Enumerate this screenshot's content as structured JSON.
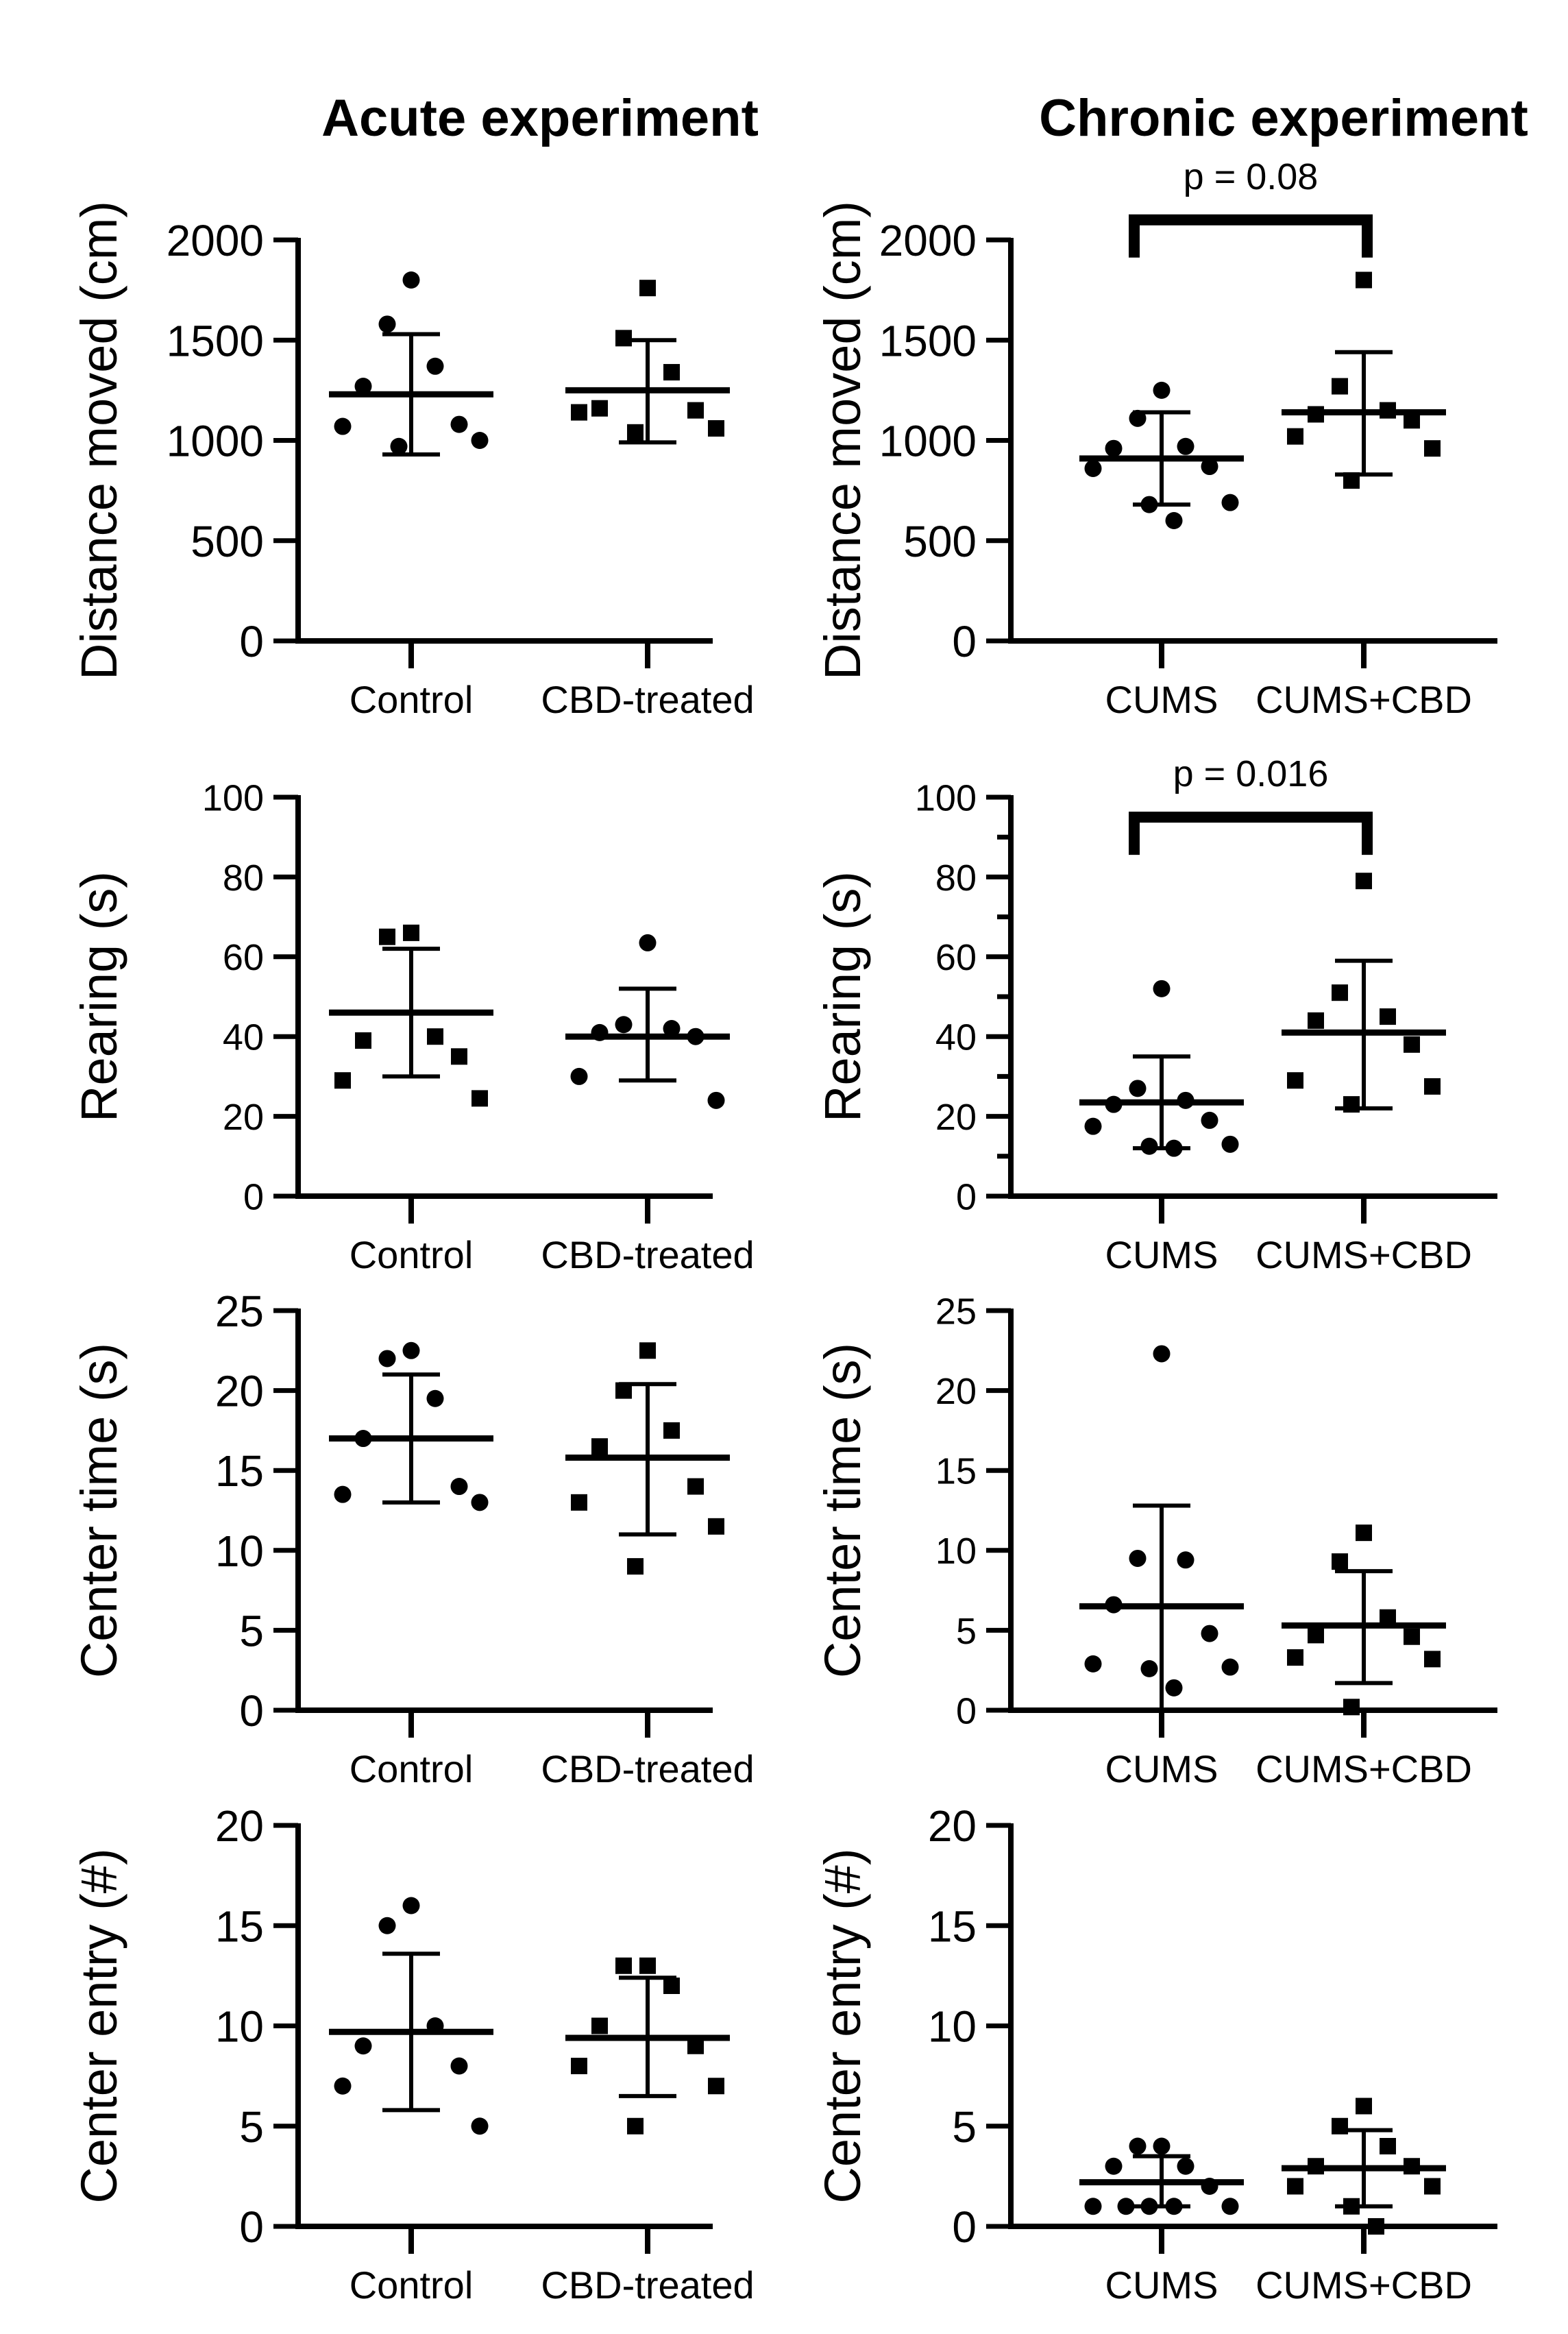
{
  "column_titles": {
    "acute": "Acute experiment",
    "chronic": "Chronic experiment"
  },
  "chart_data": [
    {
      "id": "acute-distance",
      "type": "scatter",
      "panel": "A1",
      "ylabel": "Distance moved (cm)",
      "ylim": [
        0,
        2000
      ],
      "yticks": [
        0,
        500,
        1000,
        1500,
        2000
      ],
      "ytick_size": "large",
      "minor": false,
      "categories": [
        "Control",
        "CBD-treated"
      ],
      "groups": [
        {
          "name": "Control",
          "marker": "circle",
          "mean": 1230,
          "sd_low": 930,
          "sd_high": 1530,
          "points": [
            1800,
            1580,
            1370,
            1270,
            1080,
            1070,
            1000,
            970
          ]
        },
        {
          "name": "CBD-treated",
          "marker": "square",
          "mean": 1250,
          "sd_low": 990,
          "sd_high": 1500,
          "points": [
            1760,
            1510,
            1340,
            1160,
            1150,
            1140,
            1060,
            1040
          ]
        }
      ]
    },
    {
      "id": "chronic-distance",
      "type": "scatter",
      "panel": "B1",
      "ylabel": "Distance moved (cm)",
      "ylim": [
        0,
        2000
      ],
      "yticks": [
        0,
        500,
        1000,
        1500,
        2000
      ],
      "ytick_size": "large",
      "minor": false,
      "categories": [
        "CUMS",
        "CUMS+CBD"
      ],
      "significance": {
        "label": "p = 0.08",
        "value": 0.08,
        "bracket_y": 2100
      },
      "groups": [
        {
          "name": "CUMS",
          "marker": "circle",
          "mean": 910,
          "sd_low": 680,
          "sd_high": 1140,
          "points": [
            1250,
            1110,
            970,
            960,
            870,
            860,
            690,
            680,
            600
          ]
        },
        {
          "name": "CUMS+CBD",
          "marker": "square",
          "mean": 1140,
          "sd_low": 830,
          "sd_high": 1440,
          "points": [
            1800,
            1270,
            1150,
            1130,
            1100,
            1020,
            960,
            800
          ]
        }
      ]
    },
    {
      "id": "acute-rearing",
      "type": "scatter",
      "panel": "A2",
      "ylabel": "Rearing (s)",
      "ylim": [
        0,
        100
      ],
      "yticks": [
        0,
        20,
        40,
        60,
        80,
        100
      ],
      "ytick_size": "small",
      "minor": false,
      "categories": [
        "Control",
        "CBD-treated"
      ],
      "groups": [
        {
          "name": "Control",
          "marker": "square",
          "mean": 46,
          "sd_low": 30,
          "sd_high": 62,
          "points": [
            66,
            65,
            40,
            39,
            35,
            29,
            24.5
          ]
        },
        {
          "name": "CBD-treated",
          "marker": "circle",
          "mean": 40,
          "sd_low": 29,
          "sd_high": 52,
          "points": [
            63.5,
            43,
            42,
            41,
            40,
            30,
            24
          ]
        }
      ]
    },
    {
      "id": "chronic-rearing",
      "type": "scatter",
      "panel": "B2",
      "ylabel": "Rearing (s)",
      "ylim": [
        0,
        100
      ],
      "yticks": [
        0,
        20,
        40,
        60,
        80,
        100
      ],
      "ytick_size": "small",
      "minor": true,
      "categories": [
        "CUMS",
        "CUMS+CBD"
      ],
      "significance": {
        "label": "p = 0.016",
        "value": 0.016,
        "bracket_y": 95
      },
      "groups": [
        {
          "name": "CUMS",
          "marker": "circle",
          "mean": 23.5,
          "sd_low": 12,
          "sd_high": 35,
          "points": [
            52,
            27,
            24,
            23,
            19,
            17.5,
            13,
            12.5,
            12
          ]
        },
        {
          "name": "CUMS+CBD",
          "marker": "square",
          "mean": 41,
          "sd_low": 22,
          "sd_high": 59,
          "points": [
            79,
            51,
            45,
            44,
            38,
            29,
            27.5,
            23
          ]
        }
      ]
    },
    {
      "id": "acute-center-time",
      "type": "scatter",
      "panel": "A3",
      "ylabel": "Center time (s)",
      "ylim": [
        0,
        25
      ],
      "yticks": [
        0,
        5,
        10,
        15,
        20,
        25
      ],
      "ytick_size": "large",
      "minor": false,
      "categories": [
        "Control",
        "CBD-treated"
      ],
      "groups": [
        {
          "name": "Control",
          "marker": "circle",
          "mean": 17,
          "sd_low": 13,
          "sd_high": 21,
          "points": [
            22.5,
            22,
            19.5,
            17,
            14,
            13.5,
            13
          ]
        },
        {
          "name": "CBD-treated",
          "marker": "square",
          "mean": 15.8,
          "sd_low": 11,
          "sd_high": 20.4,
          "points": [
            22.5,
            20,
            17.5,
            16.5,
            14,
            13,
            11.5,
            9
          ]
        }
      ]
    },
    {
      "id": "chronic-center-time",
      "type": "scatter",
      "panel": "B3",
      "ylabel": "Center time (s)",
      "ylim": [
        0,
        25
      ],
      "yticks": [
        0,
        5,
        10,
        15,
        20,
        25
      ],
      "ytick_size": "small",
      "minor": false,
      "categories": [
        "CUMS",
        "CUMS+CBD"
      ],
      "groups": [
        {
          "name": "CUMS",
          "marker": "circle",
          "mean": 6.5,
          "sd_low": 0,
          "sd_high": 12.8,
          "points": [
            22.3,
            9.5,
            9.4,
            6.6,
            4.8,
            2.9,
            2.7,
            2.6,
            1.4
          ]
        },
        {
          "name": "CUMS+CBD",
          "marker": "square",
          "mean": 5.3,
          "sd_low": 1.7,
          "sd_high": 8.7,
          "points": [
            11.1,
            9.3,
            5.8,
            4.7,
            4.6,
            3.3,
            3.2,
            0.2
          ]
        }
      ]
    },
    {
      "id": "acute-center-entry",
      "type": "scatter",
      "panel": "A4",
      "ylabel": "Center entry (#)",
      "ylim": [
        0,
        20
      ],
      "yticks": [
        0,
        5,
        10,
        15,
        20
      ],
      "ytick_size": "large",
      "minor": false,
      "categories": [
        "Control",
        "CBD-treated"
      ],
      "groups": [
        {
          "name": "Control",
          "marker": "circle",
          "mean": 9.7,
          "sd_low": 5.8,
          "sd_high": 13.6,
          "points": [
            16,
            15,
            10,
            9,
            8,
            7,
            5
          ]
        },
        {
          "name": "CBD-treated",
          "marker": "square",
          "mean": 9.4,
          "sd_low": 6.5,
          "sd_high": 12.4,
          "points": [
            13,
            13,
            12,
            10,
            9,
            8,
            7,
            5
          ]
        }
      ]
    },
    {
      "id": "chronic-center-entry",
      "type": "scatter",
      "panel": "B4",
      "ylabel": "Center entry (#)",
      "ylim": [
        0,
        20
      ],
      "yticks": [
        0,
        5,
        10,
        15,
        20
      ],
      "ytick_size": "large",
      "minor": false,
      "categories": [
        "CUMS",
        "CUMS+CBD"
      ],
      "groups": [
        {
          "name": "CUMS",
          "marker": "circle",
          "mean": 2.2,
          "sd_low": 1,
          "sd_high": 3.5,
          "points": [
            4,
            4,
            3,
            3,
            2,
            1,
            1,
            1,
            1,
            1
          ]
        },
        {
          "name": "CUMS+CBD",
          "marker": "square",
          "mean": 2.9,
          "sd_low": 1,
          "sd_high": 4.8,
          "points": [
            6,
            5,
            4,
            3,
            3,
            2,
            2,
            1,
            0
          ]
        }
      ]
    }
  ]
}
